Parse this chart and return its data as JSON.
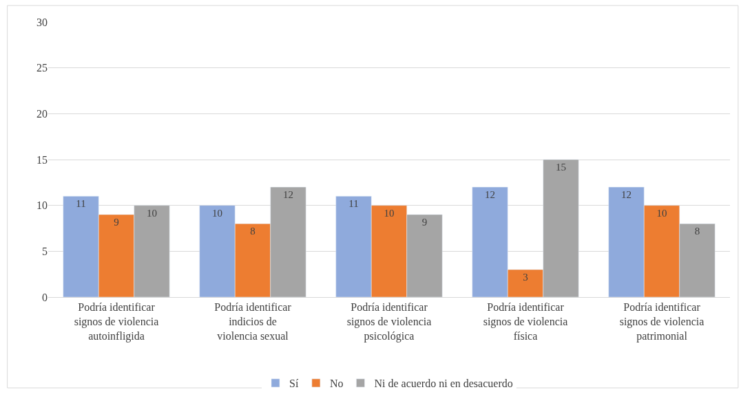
{
  "chart_data": {
    "type": "bar",
    "categories": [
      "Podría identificar signos de violencia autoinfligida",
      "Podría identificar indicios de violencia sexual",
      "Podría identificar signos de violencia psicológica",
      "Podría identificar signos de violencia física",
      "Podría identificar signos de violencia patrimonial"
    ],
    "series": [
      {
        "name": "Sí",
        "color": "#8faadc",
        "values": [
          11,
          10,
          11,
          12,
          12
        ]
      },
      {
        "name": "No",
        "color": "#ed7d31",
        "values": [
          9,
          8,
          10,
          3,
          10
        ]
      },
      {
        "name": "Ni de acuerdo ni en desacuerdo",
        "color": "#a5a5a5",
        "values": [
          10,
          12,
          9,
          15,
          8
        ]
      }
    ],
    "ylim": [
      0,
      30
    ],
    "yticks": [
      0,
      5,
      10,
      15,
      20,
      25,
      30
    ],
    "grid": "y",
    "legend": "bottom",
    "data_labels": true
  }
}
